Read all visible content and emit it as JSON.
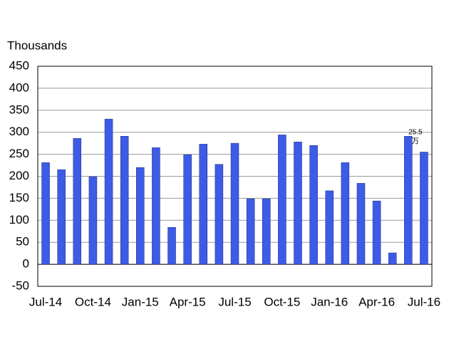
{
  "chart_data": {
    "type": "bar",
    "y_axis_label": "Thousands",
    "categories": [
      "Jul-14",
      null,
      null,
      "Oct-14",
      null,
      null,
      "Jan-15",
      null,
      null,
      "Apr-15",
      null,
      null,
      "Jul-15",
      null,
      null,
      "Oct-15",
      null,
      null,
      "Jan-16",
      null,
      null,
      "Apr-16",
      null,
      null,
      "Jul-16"
    ],
    "values": [
      231,
      215,
      286,
      199,
      330,
      291,
      220,
      265,
      84,
      249,
      273,
      227,
      275,
      149,
      149,
      294,
      278,
      270,
      167,
      231,
      184,
      144,
      26,
      291,
      255
    ],
    "color": "#3c5ce6",
    "ylim": [
      -50,
      450
    ],
    "yticks": [
      -50,
      0,
      50,
      100,
      150,
      200,
      250,
      300,
      350,
      400,
      450
    ],
    "grid": true,
    "annotations": [
      "25.5",
      "万"
    ]
  }
}
